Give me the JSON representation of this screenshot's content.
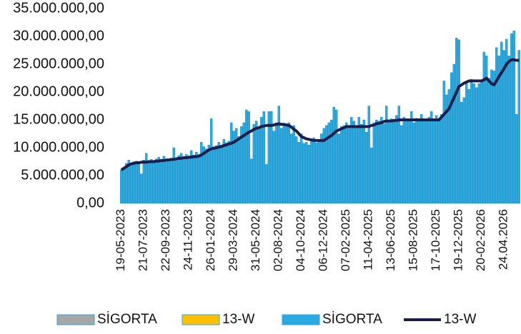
{
  "chart_data": {
    "type": "bar_line",
    "categories": [
      "19-05-2023",
      null,
      null,
      null,
      null,
      null,
      null,
      null,
      null,
      "21-07-2023",
      null,
      null,
      null,
      null,
      null,
      null,
      null,
      null,
      "22-09-2023",
      null,
      null,
      null,
      null,
      null,
      null,
      null,
      null,
      "24-11-2023",
      null,
      null,
      null,
      null,
      null,
      null,
      null,
      null,
      "26-01-2024",
      null,
      null,
      null,
      null,
      null,
      null,
      null,
      null,
      "29-03-2024",
      null,
      null,
      null,
      null,
      null,
      null,
      null,
      null,
      "31-05-2024",
      null,
      null,
      null,
      null,
      null,
      null,
      null,
      null,
      "02-08-2024",
      null,
      null,
      null,
      null,
      null,
      null,
      null,
      null,
      "04-10-2024",
      null,
      null,
      null,
      null,
      null,
      null,
      null,
      null,
      "06-12-2024",
      null,
      null,
      null,
      null,
      null,
      null,
      null,
      null,
      "07-02-2025",
      null,
      null,
      null,
      null,
      null,
      null,
      null,
      null,
      "11-04-2025",
      null,
      null,
      null,
      null,
      null,
      null,
      null,
      null,
      "13-06-2025",
      null,
      null,
      null,
      null,
      null,
      null,
      null,
      null,
      "15-08-2025",
      null,
      null,
      null,
      null,
      null,
      null,
      null,
      null,
      "17-10-2025",
      null,
      null,
      null,
      null,
      null,
      null,
      null,
      null,
      "19-12-2025",
      null,
      null,
      null,
      null,
      null,
      null,
      null,
      null,
      "20-02-2026",
      null,
      null,
      null,
      null,
      null,
      null,
      null,
      null,
      "24.04.2026",
      null,
      null,
      null,
      null,
      null,
      null
    ],
    "series": [
      {
        "type": "bar",
        "color": "#29aae1",
        "values": [
          6000000,
          6500000,
          7200000,
          7800000,
          7000000,
          7500000,
          7600000,
          7400000,
          5300000,
          7800000,
          9000000,
          7600000,
          7900000,
          7700000,
          8000000,
          8300000,
          7900000,
          8500000,
          8000000,
          7900000,
          8100000,
          10000000,
          8200000,
          8600000,
          9000000,
          8400000,
          8800000,
          8500000,
          9500000,
          8700000,
          9200000,
          8800000,
          11000000,
          10200000,
          9800000,
          10500000,
          15200000,
          10200000,
          10400000,
          11000000,
          10500000,
          11500000,
          10900000,
          11200000,
          14500000,
          13000000,
          13500000,
          12000000,
          13800000,
          14500000,
          16800000,
          16500000,
          8000000,
          14200000,
          14800000,
          13500000,
          15500000,
          16500000,
          7000000,
          16500000,
          16500000,
          13000000,
          14500000,
          17500000,
          13500000,
          14200000,
          13800000,
          14500000,
          12500000,
          14000000,
          12000000,
          11000000,
          12500000,
          10800000,
          11000000,
          10500000,
          11500000,
          11800000,
          10900000,
          11200000,
          12500000,
          13500000,
          14000000,
          14500000,
          15000000,
          17300000,
          16800000,
          12500000,
          13800000,
          14000000,
          14500000,
          13500000,
          15500000,
          14800000,
          14000000,
          15500000,
          14200000,
          15000000,
          12800000,
          17500000,
          10000000,
          14500000,
          15000000,
          14800000,
          15500000,
          14300000,
          17500000,
          14500000,
          15200000,
          14800000,
          15800000,
          17500000,
          14000000,
          15500000,
          14800000,
          15200000,
          16500000,
          14500000,
          15300000,
          14800000,
          16000000,
          15200000,
          14700000,
          15500000,
          16500000,
          15000000,
          15800000,
          15200000,
          16000000,
          22000000,
          19500000,
          20500000,
          23500000,
          25000000,
          29700000,
          29400000,
          18200000,
          19000000,
          21800000,
          20500000,
          22300000,
          21500000,
          20800000,
          21500000,
          22000000,
          27200000,
          26500000,
          22500000,
          24000000,
          23800000,
          28000000,
          26500000,
          29000000,
          27500000,
          29500000,
          26500000,
          30500000,
          31000000,
          16000000,
          27500000
        ]
      },
      {
        "type": "line",
        "color": "#1b1d4a",
        "values": [
          6000000,
          6300000,
          6600000,
          6900000,
          7100000,
          7200000,
          7300000,
          7300000,
          7400000,
          7400000,
          7400000,
          7500000,
          7500000,
          7500000,
          7600000,
          7600000,
          7700000,
          7700000,
          7800000,
          7800000,
          7900000,
          7900000,
          8000000,
          8100000,
          8100000,
          8200000,
          8200000,
          8300000,
          8300000,
          8400000,
          8400000,
          8500000,
          8700000,
          9000000,
          9300000,
          9600000,
          9800000,
          9900000,
          10000000,
          10100000,
          10200000,
          10400000,
          10500000,
          10700000,
          10800000,
          11000000,
          11300000,
          11600000,
          11900000,
          12200000,
          12500000,
          12800000,
          13000000,
          13300000,
          13500000,
          13600000,
          13800000,
          13900000,
          14000000,
          14000000,
          14000000,
          14100000,
          14200000,
          14300000,
          14200000,
          14200000,
          14100000,
          14000000,
          13700000,
          13300000,
          13000000,
          12500000,
          12000000,
          11800000,
          11600000,
          11500000,
          11400000,
          11300000,
          11300000,
          11300000,
          11300000,
          11300000,
          11600000,
          11900000,
          12200000,
          12600000,
          13000000,
          13200000,
          13400000,
          13600000,
          13800000,
          13800000,
          13800000,
          13800000,
          13800000,
          13800000,
          13800000,
          13800000,
          13800000,
          13800000,
          14000000,
          14100000,
          14300000,
          14400000,
          14500000,
          14700000,
          14800000,
          14800000,
          14800000,
          14900000,
          14900000,
          15000000,
          15000000,
          15000000,
          15000000,
          15000000,
          15000000,
          15000000,
          15000000,
          15000000,
          15000000,
          15000000,
          15000000,
          15000000,
          15000000,
          15000000,
          15000000,
          15000000,
          15500000,
          16000000,
          16500000,
          17000000,
          18000000,
          19000000,
          20000000,
          21000000,
          21300000,
          21600000,
          21800000,
          22000000,
          22000000,
          22000000,
          22000000,
          22000000,
          22000000,
          22200000,
          22500000,
          22000000,
          21500000,
          21300000,
          22000000,
          22800000,
          23500000,
          24200000,
          25000000,
          25500000,
          25800000,
          25800000,
          25700000,
          25700000
        ]
      }
    ],
    "legend": [
      {
        "name": "SİGORTA",
        "color": "#a6a6a6",
        "kind": "bar"
      },
      {
        "name": "13-W",
        "color": "#ffc000",
        "kind": "bar"
      },
      {
        "name": "SİGORTA",
        "color": "#29aae1",
        "kind": "bar"
      },
      {
        "name": "13-W",
        "color": "#1b1d4a",
        "kind": "line"
      }
    ],
    "ylim": [
      0,
      35000000
    ],
    "yticks": [
      {
        "value": 0,
        "label": "0,00"
      },
      {
        "value": 5000000,
        "label": "5.000.000,00"
      },
      {
        "value": 10000000,
        "label": "10.000.000,00"
      },
      {
        "value": 15000000,
        "label": "15.000.000,00"
      },
      {
        "value": 20000000,
        "label": "20.000.000,00"
      },
      {
        "value": 25000000,
        "label": "25.000.000,00"
      },
      {
        "value": 30000000,
        "label": "30.000.000,00"
      },
      {
        "value": 35000000,
        "label": "35.000.000,00"
      }
    ],
    "grid": false
  }
}
